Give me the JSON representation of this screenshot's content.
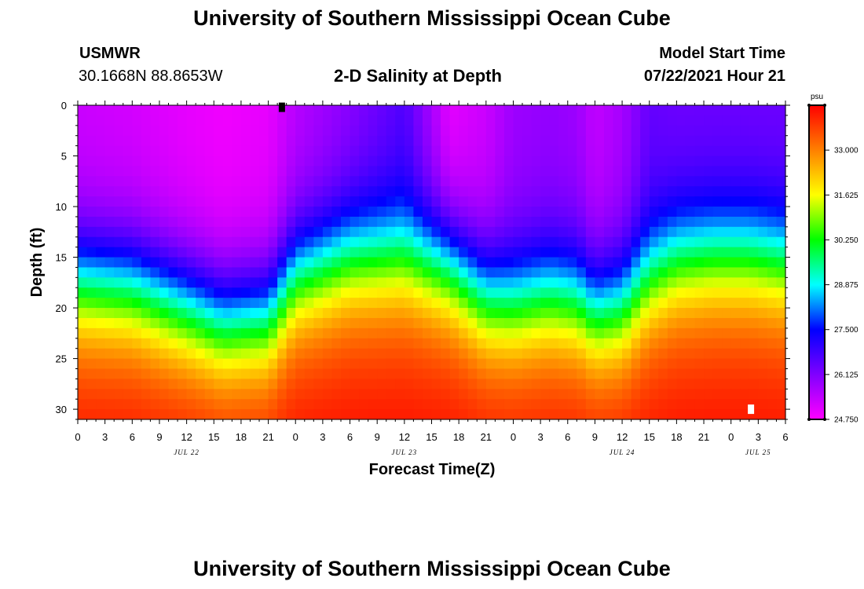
{
  "page": {
    "title_top": "University of Southern Mississippi Ocean Cube",
    "title_bottom": "University of Southern Mississippi Ocean Cube",
    "station": "USMWR",
    "coords": "30.1668N  88.8653W",
    "start_label": "Model Start Time",
    "start_value": "07/22/2021 Hour 21"
  },
  "chart_data": {
    "type": "heatmap",
    "title": "2-D Salinity at Depth",
    "xlabel": "Forecast Time(Z)",
    "ylabel": "Depth (ft)",
    "x_range_hours": [
      0,
      78
    ],
    "y_range_ft": [
      0,
      31
    ],
    "x_ticks": [
      "0",
      "3",
      "6",
      "9",
      "12",
      "15",
      "18",
      "21",
      "0",
      "3",
      "6",
      "9",
      "12",
      "15",
      "18",
      "21",
      "0",
      "3",
      "6",
      "9",
      "12",
      "15",
      "18",
      "21",
      "0",
      "3",
      "6"
    ],
    "y_ticks": [
      0,
      5,
      10,
      15,
      20,
      25,
      30
    ],
    "date_labels": [
      {
        "label": "JUL 22",
        "hour": 12
      },
      {
        "label": "JUL 23",
        "hour": 36
      },
      {
        "label": "JUL 24",
        "hour": 60
      },
      {
        "label": "JUL 25",
        "hour": 75
      }
    ],
    "colorbar": {
      "unit": "psu",
      "min": 24.75,
      "max": 34.375,
      "ticks": [
        "33.000",
        "31.625",
        "30.250",
        "28.875",
        "27.500",
        "26.125",
        "24.750"
      ],
      "colors": [
        "#ff00ff",
        "#8000ff",
        "#0000ff",
        "#00ffff",
        "#00ff00",
        "#ffff00",
        "#ff8000",
        "#ff0000"
      ]
    },
    "salinity_model": {
      "description": "halocline depth (ft) and surface salinity (psu) vs forecast hour",
      "hours": [
        0,
        6,
        12,
        16,
        21,
        24,
        30,
        36,
        41,
        45,
        48,
        52,
        55,
        57,
        60,
        63,
        66,
        70,
        74,
        78
      ],
      "halocline_ft": [
        17.5,
        18.0,
        20.0,
        21.5,
        21.0,
        17.0,
        15.0,
        14.8,
        16.0,
        19.0,
        19.5,
        18.8,
        19.2,
        20.5,
        20.0,
        17.0,
        15.3,
        14.8,
        14.8,
        15.5
      ],
      "surface_psu": [
        25.3,
        25.2,
        25.0,
        24.9,
        25.0,
        25.5,
        26.0,
        26.6,
        25.0,
        25.3,
        25.8,
        25.9,
        25.8,
        25.4,
        25.7,
        26.4,
        26.3,
        26.3,
        26.3,
        26.3
      ],
      "bottom_psu": 33.6,
      "deep_max_psu": 34.3
    },
    "markers": [
      {
        "hour": 22.5,
        "depth_ft": 0.2,
        "color": "#000000"
      },
      {
        "hour": 74.2,
        "depth_ft": 30.0,
        "color": "#ffffff"
      }
    ]
  }
}
